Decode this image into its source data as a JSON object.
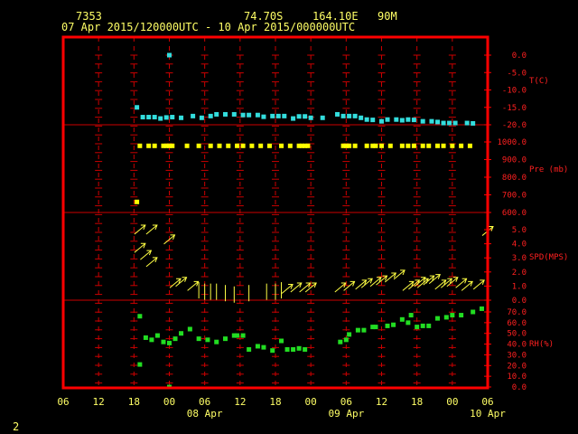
{
  "header": {
    "station_id": "7353",
    "latitude": "74.70S",
    "longitude": "164.10E",
    "elevation": "90M",
    "time_range": "07 Apr 2015/120000UTC - 10 Apr 2015/000000UTC"
  },
  "page_number": "2",
  "colors": {
    "frame": "#ff0000",
    "grid": "#cc0000",
    "label_red": "#ff2020",
    "label_yellow": "#ffff66",
    "temperature": "#33dddd",
    "pressure": "#ffff00",
    "wind": "#ffff44",
    "rh": "#22dd22"
  },
  "chart_data": {
    "type": "scatter",
    "x_axis": {
      "unit": "hours since 07 Apr 2015 06UTC",
      "range": [
        0,
        72
      ],
      "ticks": [
        0,
        6,
        12,
        18,
        24,
        30,
        36,
        42,
        48,
        54,
        60,
        66,
        72
      ],
      "tick_labels": [
        "06",
        "12",
        "18",
        "00",
        "06",
        "12",
        "18",
        "00",
        "06",
        "12",
        "18",
        "00",
        "06"
      ],
      "day_labels": [
        {
          "at": 24,
          "text": "08 Apr"
        },
        {
          "at": 48,
          "text": "09 Apr"
        },
        {
          "at": 72,
          "text": "10 Apr"
        }
      ]
    },
    "panels": [
      {
        "name": "temperature",
        "label": "T(C)",
        "ticks": [
          "0.0",
          "-5.0",
          "-10.0",
          "-15.0",
          "-20.0"
        ],
        "tick_values": [
          0,
          -5,
          -10,
          -15,
          -20
        ],
        "reference_line": -20,
        "points": [
          [
            12.5,
            -15.0
          ],
          [
            13.5,
            -17.8
          ],
          [
            14.5,
            -17.8
          ],
          [
            15.5,
            -17.8
          ],
          [
            16.5,
            -18.2
          ],
          [
            17.5,
            -17.9
          ],
          [
            18.5,
            -17.8
          ],
          [
            20.0,
            -18.0
          ],
          [
            22.0,
            -17.5
          ],
          [
            23.5,
            -18.0
          ],
          [
            25.0,
            -17.5
          ],
          [
            26.0,
            -17.0
          ],
          [
            27.5,
            -17.0
          ],
          [
            29.0,
            -17.0
          ],
          [
            30.5,
            -17.2
          ],
          [
            31.5,
            -17.2
          ],
          [
            33.0,
            -17.2
          ],
          [
            34.0,
            -17.7
          ],
          [
            35.5,
            -17.5
          ],
          [
            36.5,
            -17.5
          ],
          [
            37.5,
            -17.5
          ],
          [
            39.0,
            -18.2
          ],
          [
            40.0,
            -17.6
          ],
          [
            41.0,
            -17.6
          ],
          [
            42.0,
            -18.0
          ],
          [
            44.0,
            -18.0
          ],
          [
            46.5,
            -17.0
          ],
          [
            47.5,
            -17.5
          ],
          [
            48.5,
            -17.5
          ],
          [
            49.5,
            -17.5
          ],
          [
            50.5,
            -18.0
          ],
          [
            51.5,
            -18.5
          ],
          [
            52.5,
            -18.6
          ],
          [
            54.0,
            -19.0
          ],
          [
            55.0,
            -18.5
          ],
          [
            56.5,
            -18.5
          ],
          [
            57.5,
            -18.7
          ],
          [
            58.5,
            -18.5
          ],
          [
            59.5,
            -18.6
          ],
          [
            61.0,
            -19.0
          ],
          [
            62.5,
            -19.0
          ],
          [
            63.5,
            -19.2
          ],
          [
            64.5,
            -19.5
          ],
          [
            65.5,
            -19.5
          ],
          [
            66.5,
            -19.5
          ],
          [
            68.5,
            -19.5
          ],
          [
            69.5,
            -19.6
          ]
        ],
        "outliers": [
          [
            18.0,
            0.0
          ]
        ]
      },
      {
        "name": "pressure",
        "label": "Pre (mb)",
        "ticks": [
          "1000.0",
          "900.0",
          "800.0",
          "700.0",
          "600.0"
        ],
        "tick_values": [
          1000,
          900,
          800,
          700,
          600
        ],
        "reference_line": 600,
        "points": [
          [
            13.0,
            978
          ],
          [
            14.5,
            978
          ],
          [
            15.5,
            978
          ],
          [
            17.0,
            978
          ],
          [
            17.5,
            978
          ],
          [
            18.0,
            978
          ],
          [
            18.5,
            978
          ],
          [
            21.0,
            978
          ],
          [
            23.0,
            978
          ],
          [
            25.0,
            978
          ],
          [
            26.5,
            978
          ],
          [
            28.0,
            978
          ],
          [
            29.5,
            978
          ],
          [
            30.5,
            978
          ],
          [
            32.0,
            978
          ],
          [
            33.5,
            978
          ],
          [
            35.0,
            978
          ],
          [
            37.0,
            978
          ],
          [
            38.5,
            978
          ],
          [
            40.0,
            978
          ],
          [
            40.5,
            978
          ],
          [
            41.0,
            978
          ],
          [
            41.5,
            978
          ],
          [
            47.5,
            978
          ],
          [
            48.0,
            978
          ],
          [
            48.5,
            978
          ],
          [
            49.5,
            978
          ],
          [
            51.5,
            978
          ],
          [
            52.5,
            978
          ],
          [
            53.0,
            978
          ],
          [
            54.0,
            978
          ],
          [
            55.5,
            978
          ],
          [
            57.5,
            978
          ],
          [
            58.5,
            978
          ],
          [
            59.5,
            978
          ],
          [
            61.0,
            978
          ],
          [
            62.0,
            978
          ],
          [
            63.5,
            978
          ],
          [
            64.5,
            978
          ],
          [
            66.0,
            978
          ],
          [
            67.5,
            978
          ],
          [
            69.0,
            978
          ]
        ],
        "outliers": [
          [
            12.5,
            660
          ]
        ]
      },
      {
        "name": "wind",
        "label": "SPD(MPS)",
        "ticks": [
          "5.0",
          "4.0",
          "3.0",
          "2.0",
          "1.0",
          "0.0"
        ],
        "tick_values": [
          5,
          4,
          3,
          2,
          1,
          0
        ],
        "reference_line": 0,
        "points": [
          [
            13.0,
            5.0
          ],
          [
            15.0,
            5.0
          ],
          [
            13.0,
            3.7
          ],
          [
            14.0,
            3.2
          ],
          [
            15.0,
            2.7
          ],
          [
            18.0,
            4.3
          ],
          [
            19.0,
            1.2
          ],
          [
            20.0,
            1.3
          ],
          [
            22.0,
            1.0
          ],
          [
            23.0,
            0.7
          ],
          [
            24.0,
            0.6
          ],
          [
            25.0,
            0.6
          ],
          [
            26.0,
            0.6
          ],
          [
            27.5,
            0.5
          ],
          [
            29.0,
            0.4
          ],
          [
            31.5,
            0.5
          ],
          [
            34.5,
            0.6
          ],
          [
            36.0,
            0.6
          ],
          [
            37.0,
            0.7
          ],
          [
            38.0,
            0.8
          ],
          [
            39.5,
            0.9
          ],
          [
            41.0,
            0.9
          ],
          [
            42.0,
            0.9
          ],
          [
            47.0,
            0.9
          ],
          [
            48.5,
            1.0
          ],
          [
            50.5,
            1.1
          ],
          [
            51.5,
            1.2
          ],
          [
            53.0,
            1.3
          ],
          [
            54.0,
            1.4
          ],
          [
            55.5,
            1.6
          ],
          [
            57.0,
            1.8
          ],
          [
            58.5,
            1.0
          ],
          [
            59.5,
            1.1
          ],
          [
            60.5,
            1.3
          ],
          [
            61.0,
            1.2
          ],
          [
            62.0,
            1.4
          ],
          [
            63.0,
            1.5
          ],
          [
            64.0,
            1.1
          ],
          [
            65.0,
            1.2
          ],
          [
            66.0,
            1.3
          ],
          [
            67.5,
            1.2
          ],
          [
            68.5,
            1.0
          ],
          [
            70.5,
            1.1
          ],
          [
            72.0,
            4.9
          ]
        ]
      },
      {
        "name": "relative_humidity",
        "label": "RH(%)",
        "ticks": [
          "70.0",
          "60.0",
          "50.0",
          "40.0",
          "30.0",
          "20.0",
          "10.0",
          "0.0"
        ],
        "tick_values": [
          70,
          60,
          50,
          40,
          30,
          20,
          10,
          0
        ],
        "points": [
          [
            13.0,
            66
          ],
          [
            13.0,
            21
          ],
          [
            14.0,
            46
          ],
          [
            15.0,
            44
          ],
          [
            16.0,
            48
          ],
          [
            17.0,
            42
          ],
          [
            18.0,
            41
          ],
          [
            19.0,
            45
          ],
          [
            20.0,
            50
          ],
          [
            21.5,
            54
          ],
          [
            23.0,
            45
          ],
          [
            24.5,
            44
          ],
          [
            26.0,
            42
          ],
          [
            27.5,
            45
          ],
          [
            29.0,
            48
          ],
          [
            29.5,
            48
          ],
          [
            30.5,
            48
          ],
          [
            31.5,
            35
          ],
          [
            33.0,
            38
          ],
          [
            34.0,
            37
          ],
          [
            35.5,
            34
          ],
          [
            37.0,
            43
          ],
          [
            38.0,
            35
          ],
          [
            39.0,
            35
          ],
          [
            40.0,
            36
          ],
          [
            41.0,
            35
          ],
          [
            47.0,
            42
          ],
          [
            48.0,
            44
          ],
          [
            48.5,
            49
          ],
          [
            50.0,
            53
          ],
          [
            51.0,
            53
          ],
          [
            52.5,
            56
          ],
          [
            53.0,
            56
          ],
          [
            55.0,
            57
          ],
          [
            56.0,
            58
          ],
          [
            57.5,
            63
          ],
          [
            58.5,
            60
          ],
          [
            59.0,
            67
          ],
          [
            60.0,
            56
          ],
          [
            61.0,
            57
          ],
          [
            62.0,
            57
          ],
          [
            63.5,
            64
          ],
          [
            65.0,
            65
          ],
          [
            66.0,
            67
          ],
          [
            67.5,
            67
          ],
          [
            69.5,
            70
          ],
          [
            71.0,
            73
          ]
        ],
        "outliers": [
          [
            18.0,
            0.0
          ]
        ]
      }
    ]
  }
}
